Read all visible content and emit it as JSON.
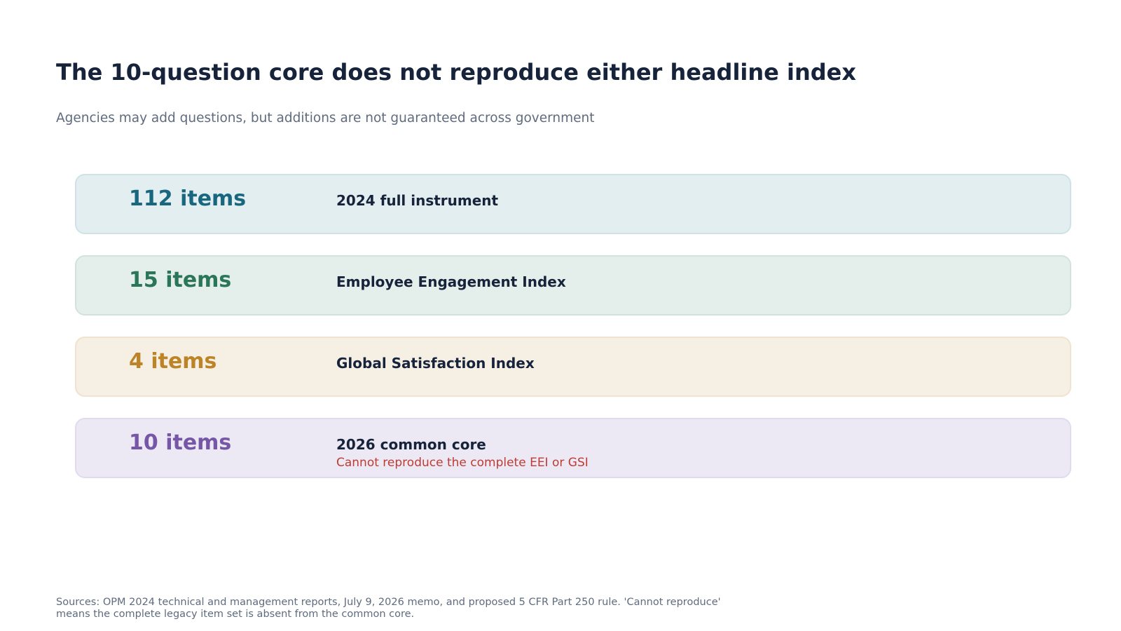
{
  "title": "The 10-question core does not reproduce either headline index",
  "subtitle": "Agencies may add questions, but additions are not guaranteed across government",
  "cards": [
    {
      "count": "112 items",
      "label": "2024 full instrument",
      "note": "",
      "accent": "#19667f",
      "background": "#e2eef0"
    },
    {
      "count": "15 items",
      "label": "Employee Engagement Index",
      "note": "",
      "accent": "#2b7558",
      "background": "#e4eeeb"
    },
    {
      "count": "4 items",
      "label": "Global Satisfaction Index",
      "note": "",
      "accent": "#bc8427",
      "background": "#f6efe4"
    },
    {
      "count": "10 items",
      "label": "2026 common core",
      "note": "Cannot reproduce the complete EEI or GSI",
      "accent": "#7657a6",
      "background": "#ece9f4"
    }
  ],
  "footer": {
    "line1": "Sources: OPM 2024 technical and management reports, July 9, 2026 memo, and proposed 5 CFR Part 250 rule. 'Cannot reproduce'",
    "line2": "means the complete legacy item set is absent from the common core."
  },
  "colors": {
    "title": "#16233a",
    "subtitle": "#5f6b7e",
    "warning": "#bf3b33"
  }
}
